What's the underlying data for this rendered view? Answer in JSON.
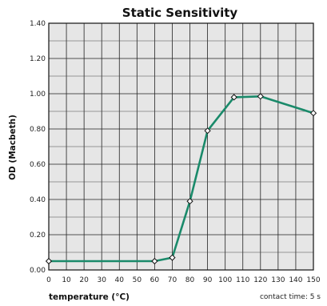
{
  "chart_data": {
    "type": "line",
    "title": "Static Sensitivity",
    "xlabel": "temperature (°C)",
    "ylabel": "OD (Macbeth)",
    "annotation": "contact time: 5 s",
    "xlim": [
      0,
      150
    ],
    "ylim": [
      0,
      1.4
    ],
    "x_ticks": [
      0,
      10,
      20,
      30,
      40,
      50,
      60,
      70,
      80,
      90,
      100,
      110,
      120,
      130,
      140,
      150
    ],
    "y_ticks": [
      0,
      0.2,
      0.4,
      0.6,
      0.8,
      1.0,
      1.2,
      1.4
    ],
    "y_tick_labels": [
      "0.00",
      "0.20",
      "0.40",
      "0.60",
      "0.80",
      "1.00",
      "1.20",
      "1.40"
    ],
    "grid": true,
    "series": [
      {
        "x": [
          0,
          60,
          70,
          80,
          90,
          105,
          120,
          150
        ],
        "y": [
          0.05,
          0.05,
          0.07,
          0.39,
          0.79,
          0.98,
          0.985,
          0.89
        ],
        "color": "#1a8a6a",
        "marker": "diamond"
      }
    ]
  }
}
